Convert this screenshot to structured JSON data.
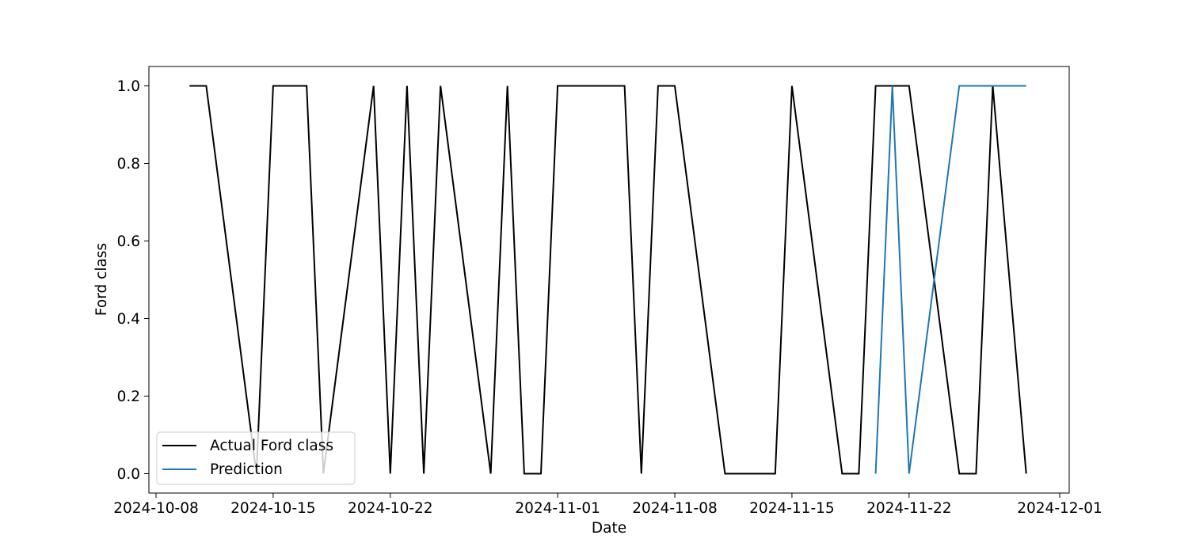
{
  "chart_data": {
    "type": "line",
    "title": "",
    "xlabel": "Date",
    "ylabel": "Ford class",
    "x_axis": {
      "range": [
        "2024-10-08",
        "2024-12-01"
      ],
      "ticks": [
        "2024-10-08",
        "2024-10-15",
        "2024-10-22",
        "2024-11-01",
        "2024-11-08",
        "2024-11-15",
        "2024-11-22",
        "2024-12-01"
      ]
    },
    "y_axis": {
      "range": [
        -0.05,
        1.05
      ],
      "ticks": [
        0.0,
        0.2,
        0.4,
        0.6,
        0.8,
        1.0
      ],
      "tick_labels": [
        "0.0",
        "0.2",
        "0.4",
        "0.6",
        "0.8",
        "1.0"
      ]
    },
    "grid": false,
    "legend": "lower-left",
    "series": [
      {
        "name": "Actual Ford class",
        "color": "#000000",
        "points": [
          [
            "2024-10-10",
            1
          ],
          [
            "2024-10-11",
            1
          ],
          [
            "2024-10-14",
            0
          ],
          [
            "2024-10-15",
            1
          ],
          [
            "2024-10-16",
            1
          ],
          [
            "2024-10-17",
            1
          ],
          [
            "2024-10-18",
            0
          ],
          [
            "2024-10-21",
            1
          ],
          [
            "2024-10-22",
            0
          ],
          [
            "2024-10-23",
            1
          ],
          [
            "2024-10-24",
            0
          ],
          [
            "2024-10-25",
            1
          ],
          [
            "2024-10-28",
            0
          ],
          [
            "2024-10-29",
            1
          ],
          [
            "2024-10-30",
            0
          ],
          [
            "2024-10-31",
            0
          ],
          [
            "2024-11-01",
            1
          ],
          [
            "2024-11-04",
            1
          ],
          [
            "2024-11-05",
            1
          ],
          [
            "2024-11-06",
            0
          ],
          [
            "2024-11-07",
            1
          ],
          [
            "2024-11-08",
            1
          ],
          [
            "2024-11-11",
            0
          ],
          [
            "2024-11-12",
            0
          ],
          [
            "2024-11-13",
            0
          ],
          [
            "2024-11-14",
            0
          ],
          [
            "2024-11-15",
            1
          ],
          [
            "2024-11-18",
            0
          ],
          [
            "2024-11-19",
            0
          ],
          [
            "2024-11-20",
            1
          ],
          [
            "2024-11-21",
            1
          ],
          [
            "2024-11-22",
            1
          ],
          [
            "2024-11-25",
            0
          ],
          [
            "2024-11-26",
            0
          ],
          [
            "2024-11-27",
            1
          ],
          [
            "2024-11-29",
            0
          ]
        ]
      },
      {
        "name": "Prediction",
        "color": "#1f77b4",
        "points": [
          [
            "2024-11-20",
            0
          ],
          [
            "2024-11-21",
            1
          ],
          [
            "2024-11-22",
            0
          ],
          [
            "2024-11-25",
            1
          ],
          [
            "2024-11-26",
            1
          ],
          [
            "2024-11-27",
            1
          ],
          [
            "2024-11-29",
            1
          ]
        ]
      }
    ]
  }
}
